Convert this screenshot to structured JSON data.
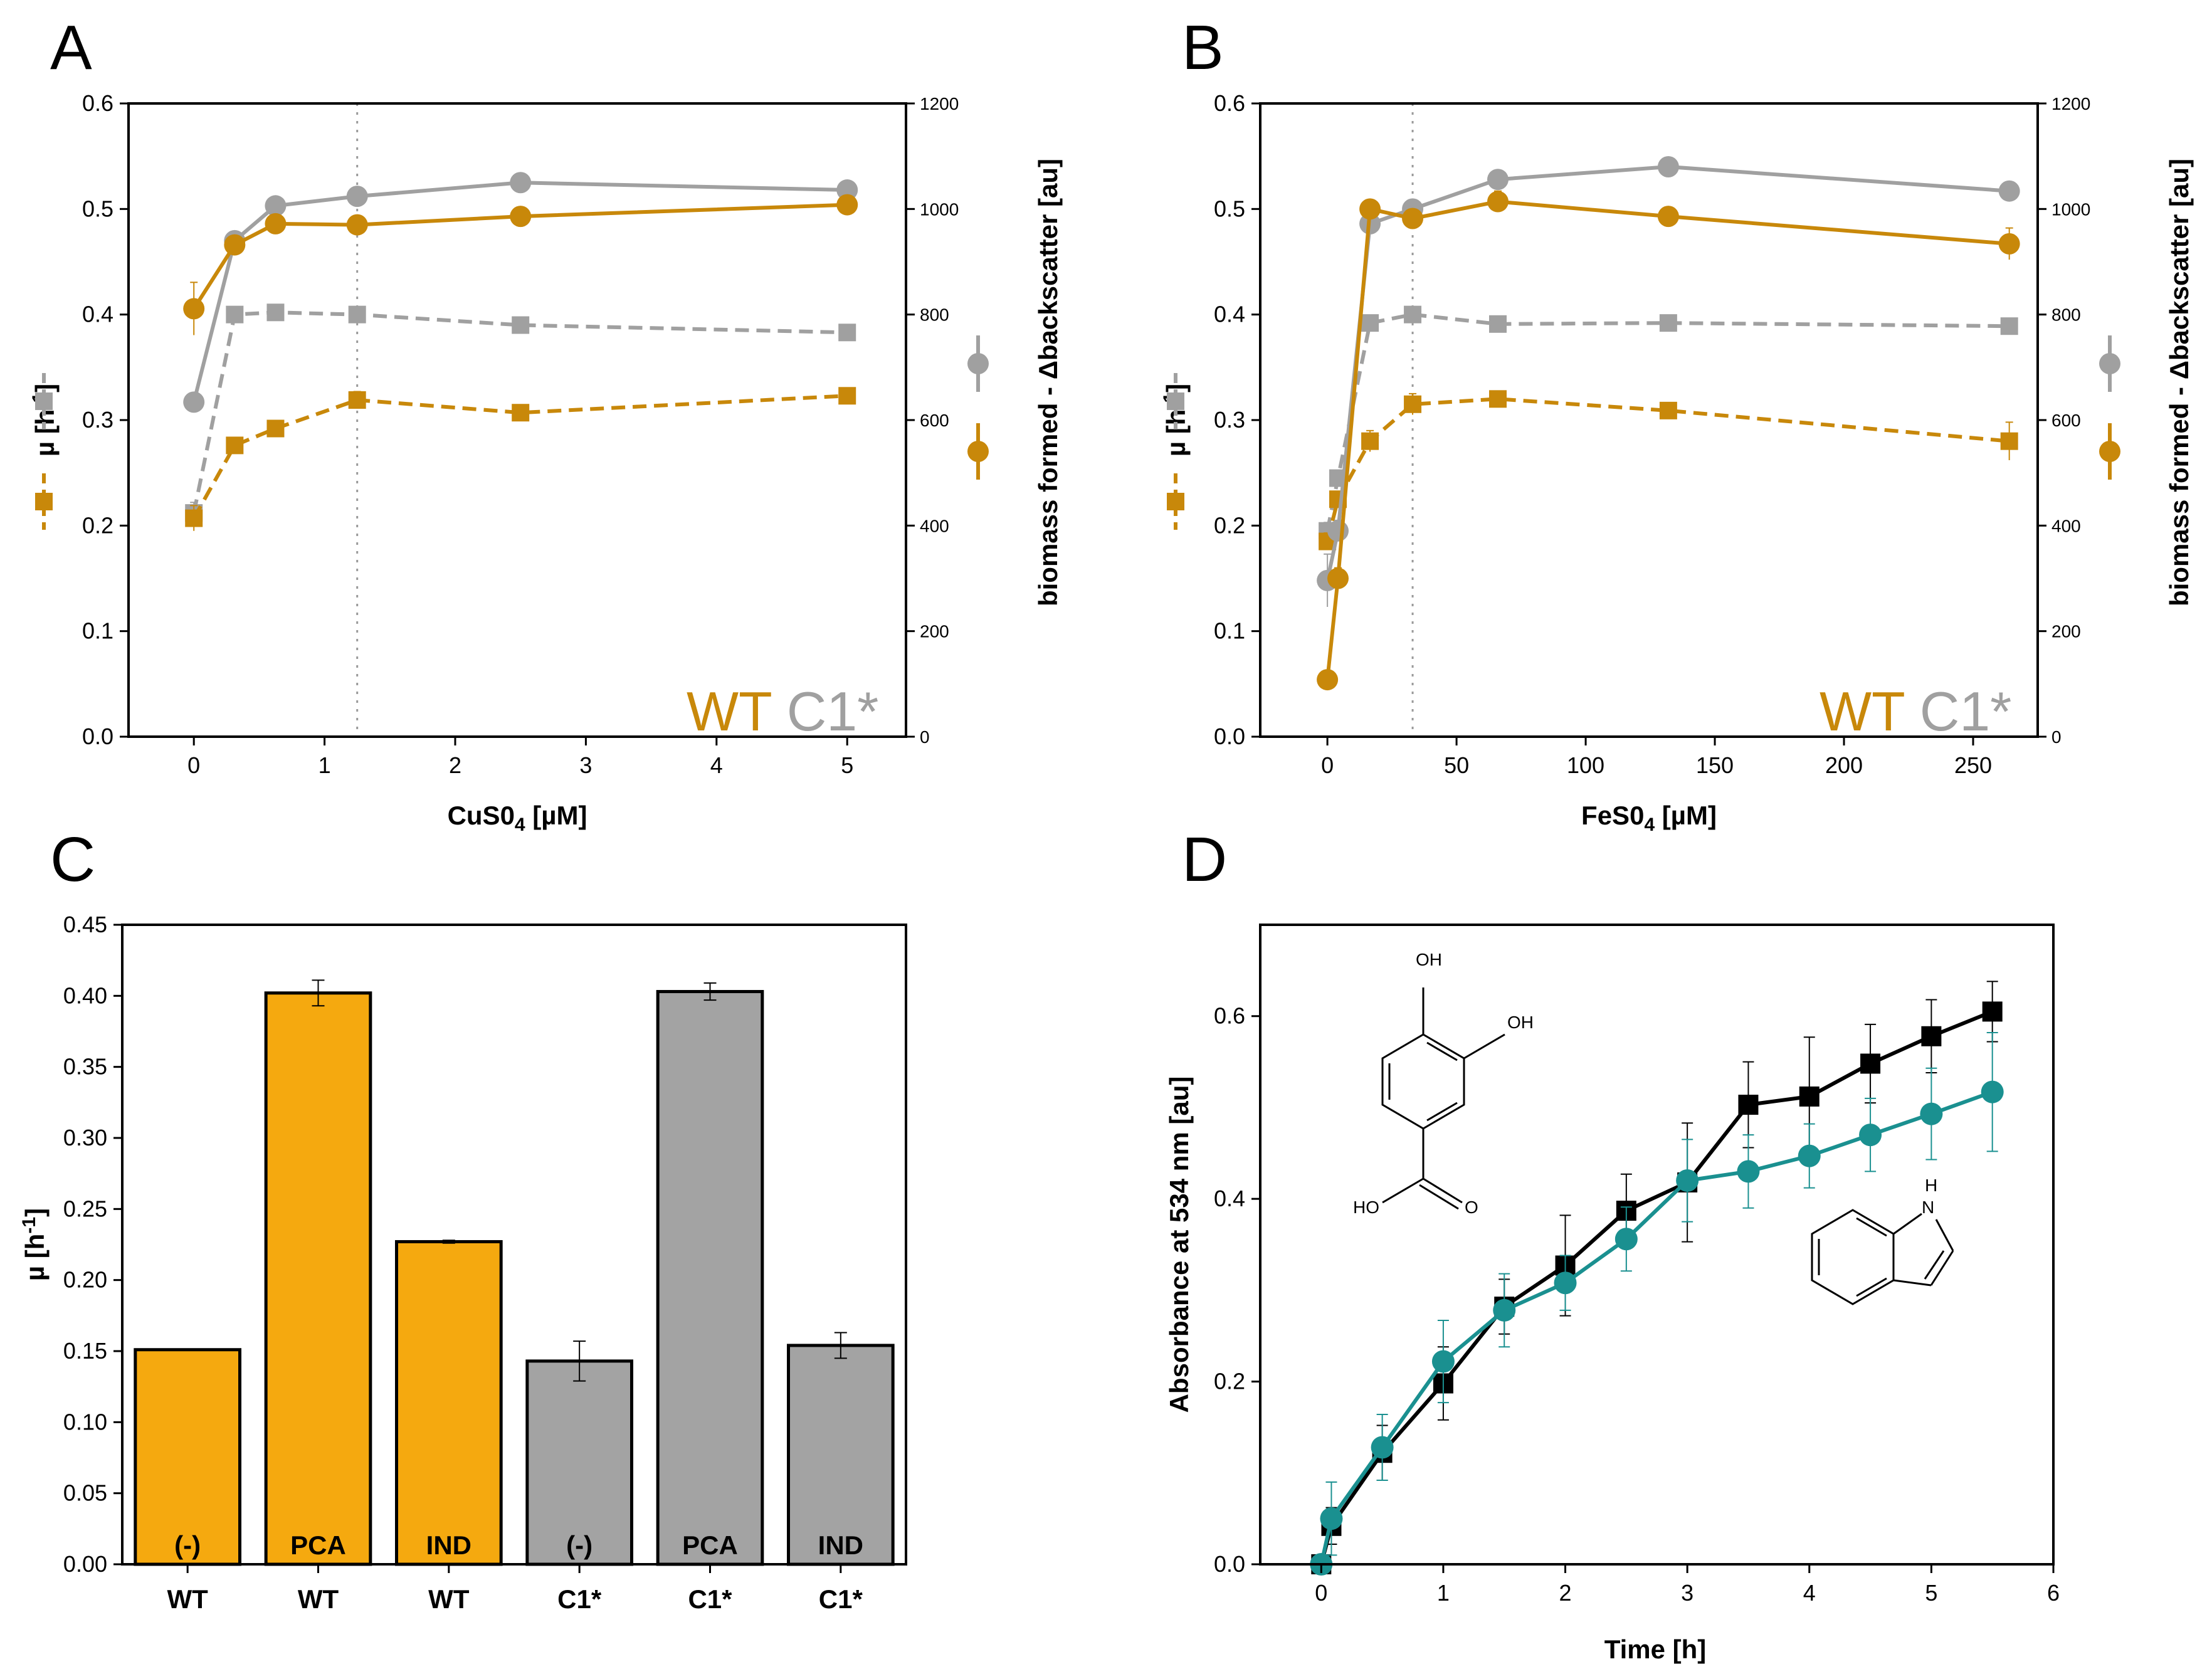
{
  "colors": {
    "wt": "#c8880a",
    "c1": "#a0a0a0",
    "wt_bar": "#f5a90f",
    "c1_bar": "#a3a3a3",
    "black_series": "#000000",
    "teal_series": "#1a9090",
    "guide": "#9a9a9a"
  },
  "legend": {
    "wt": "WT",
    "c1": "C1*"
  },
  "chart_data": [
    {
      "panel": "A",
      "type": "line",
      "xlabel_main": "CuS0",
      "xlabel_sub": "4",
      "xlabel_unit": " [µM]",
      "ylabel_left_main": "µ [h",
      "ylabel_left_sup": "-1",
      "ylabel_left_end": "]",
      "ylabel_right": "biomass formed - Δbackscatter [au]",
      "xlim": [
        -0.5,
        5.45
      ],
      "xticks": [
        "0",
        "1",
        "2",
        "3",
        "4",
        "5"
      ],
      "xtick_values": [
        0,
        1,
        2,
        3,
        4,
        5
      ],
      "ylim_left": [
        0,
        0.6
      ],
      "yticks_left": [
        "0.0",
        "0.1",
        "0.2",
        "0.3",
        "0.4",
        "0.5",
        "0.6"
      ],
      "ylim_right": [
        0,
        1200
      ],
      "yticks_right": [
        "0",
        "200",
        "400",
        "600",
        "800",
        "1000",
        "1200"
      ],
      "guide_x": 1.25,
      "x": [
        0,
        0.3125,
        0.625,
        1.25,
        2.5,
        5
      ],
      "series": [
        {
          "name": "C1* μ",
          "axis": "left",
          "style": "dashed",
          "marker": "square",
          "color_key": "c1",
          "values": [
            0.212,
            0.4,
            0.402,
            0.4,
            0.39,
            0.383
          ],
          "errors": [
            0.01,
            0.005,
            0.005,
            0.005,
            0.005,
            0.005
          ]
        },
        {
          "name": "WT μ",
          "axis": "left",
          "style": "dashed",
          "marker": "square",
          "color_key": "wt",
          "values": [
            0.207,
            0.276,
            0.292,
            0.319,
            0.307,
            0.323
          ],
          "errors": [
            0.012,
            0.005,
            0.005,
            0.008,
            0.005,
            0.005
          ]
        },
        {
          "name": "C1* biomass",
          "axis": "right",
          "style": "solid",
          "marker": "circle",
          "color_key": "c1",
          "values": [
            634,
            940,
            1006,
            1024,
            1050,
            1036
          ],
          "errors": [
            10,
            10,
            10,
            10,
            10,
            10
          ]
        },
        {
          "name": "WT biomass",
          "axis": "right",
          "style": "solid",
          "marker": "circle",
          "color_key": "wt",
          "values": [
            811,
            932,
            972,
            970,
            986,
            1008
          ],
          "errors": [
            50,
            10,
            10,
            10,
            10,
            10
          ]
        }
      ]
    },
    {
      "panel": "B",
      "type": "line",
      "xlabel_main": "FeS0",
      "xlabel_sub": "4",
      "xlabel_unit": " [µM]",
      "ylabel_left_main": "µ [h",
      "ylabel_left_sup": "-1",
      "ylabel_left_end": "]",
      "ylabel_right": "biomass formed - Δbackscatter [au]",
      "xlim": [
        -26,
        275
      ],
      "xticks": [
        "0",
        "50",
        "100",
        "150",
        "200",
        "250"
      ],
      "xtick_values": [
        0,
        50,
        100,
        150,
        200,
        250
      ],
      "ylim_left": [
        0,
        0.6
      ],
      "yticks_left": [
        "0.0",
        "0.1",
        "0.2",
        "0.3",
        "0.4",
        "0.5",
        "0.6"
      ],
      "ylim_right": [
        0,
        1200
      ],
      "yticks_right": [
        "0",
        "200",
        "400",
        "600",
        "800",
        "1000",
        "1200"
      ],
      "guide_x": 33,
      "x": [
        0,
        4.1,
        16.5,
        33,
        66,
        132,
        264
      ],
      "series": [
        {
          "name": "C1* μ",
          "axis": "left",
          "style": "dashed",
          "marker": "square",
          "color_key": "c1",
          "values": [
            0.195,
            0.245,
            0.392,
            0.4,
            0.391,
            0.392,
            0.389
          ],
          "errors": [
            0.008,
            0.005,
            0.005,
            0.005,
            0.005,
            0.005,
            0.005
          ]
        },
        {
          "name": "WT μ",
          "axis": "left",
          "style": "dashed",
          "marker": "square",
          "color_key": "wt",
          "values": [
            0.185,
            0.225,
            0.28,
            0.315,
            0.32,
            0.309,
            0.28
          ],
          "errors": [
            0.008,
            0.005,
            0.01,
            0.01,
            0.005,
            0.005,
            0.018
          ]
        },
        {
          "name": "C1* biomass",
          "axis": "right",
          "style": "solid",
          "marker": "circle",
          "color_key": "c1",
          "values": [
            296,
            390,
            972,
            1000,
            1056,
            1080,
            1034
          ],
          "errors": [
            50,
            20,
            10,
            10,
            10,
            10,
            10
          ]
        },
        {
          "name": "WT biomass",
          "axis": "right",
          "style": "solid",
          "marker": "circle",
          "color_key": "wt",
          "values": [
            108,
            300,
            1000,
            982,
            1014,
            986,
            934
          ],
          "errors": [
            10,
            20,
            10,
            10,
            20,
            10,
            30
          ]
        }
      ]
    },
    {
      "panel": "C",
      "type": "bar",
      "ylabel_main": "µ [h",
      "ylabel_sup": "-1",
      "ylabel_end": "]",
      "ylim": [
        0,
        0.45
      ],
      "yticks": [
        "0.00",
        "0.05",
        "0.10",
        "0.15",
        "0.20",
        "0.25",
        "0.30",
        "0.35",
        "0.40",
        "0.45"
      ],
      "categories": [
        "WT",
        "WT",
        "WT",
        "C1*",
        "C1*",
        "C1*"
      ],
      "bar_labels": [
        "(-)",
        "PCA",
        "IND",
        "(-)",
        "PCA",
        "IND"
      ],
      "values": [
        0.151,
        0.402,
        0.227,
        0.143,
        0.403,
        0.154
      ],
      "errors": [
        0.0,
        0.009,
        0.001,
        0.014,
        0.006,
        0.009
      ],
      "color_keys": [
        "wt_bar",
        "wt_bar",
        "wt_bar",
        "c1_bar",
        "c1_bar",
        "c1_bar"
      ]
    },
    {
      "panel": "D",
      "type": "line",
      "xlabel": "Time [h]",
      "ylabel": "Absorbance at 534 nm [au]",
      "xlim": [
        -0.5,
        6
      ],
      "xticks": [
        "0",
        "1",
        "2",
        "3",
        "4",
        "5",
        "6"
      ],
      "xtick_values": [
        0,
        1,
        2,
        3,
        4,
        5,
        6
      ],
      "ylim": [
        0,
        0.7
      ],
      "yticks": [
        "0.0",
        "0.2",
        "0.4",
        "0.6"
      ],
      "ytick_values": [
        0,
        0.2,
        0.4,
        0.6
      ],
      "x": [
        0,
        0.083,
        0.5,
        1,
        1.5,
        2,
        2.5,
        3,
        3.5,
        4,
        4.5,
        5,
        5.5
      ],
      "series": [
        {
          "name": "PCA",
          "marker": "square",
          "color_key": "black_series",
          "values": [
            0.0,
            0.042,
            0.122,
            0.198,
            0.282,
            0.327,
            0.387,
            0.418,
            0.503,
            0.512,
            0.548,
            0.578,
            0.605
          ],
          "errors": [
            0.005,
            0.02,
            0.03,
            0.04,
            0.03,
            0.055,
            0.04,
            0.065,
            0.047,
            0.065,
            0.043,
            0.04,
            0.033
          ]
        },
        {
          "name": "IND",
          "marker": "circle",
          "color_key": "teal_series",
          "values": [
            0.0,
            0.05,
            0.128,
            0.222,
            0.278,
            0.308,
            0.356,
            0.42,
            0.43,
            0.447,
            0.47,
            0.493,
            0.517
          ],
          "errors": [
            0.005,
            0.04,
            0.036,
            0.045,
            0.04,
            0.03,
            0.035,
            0.045,
            0.04,
            0.035,
            0.04,
            0.05,
            0.065
          ]
        }
      ],
      "molecule_pca_labels": {
        "oh1": "OH",
        "oh2": "OH",
        "ho": "HO",
        "o": "O"
      },
      "molecule_ind_label": "H",
      "molecule_ind_n": "N"
    }
  ]
}
